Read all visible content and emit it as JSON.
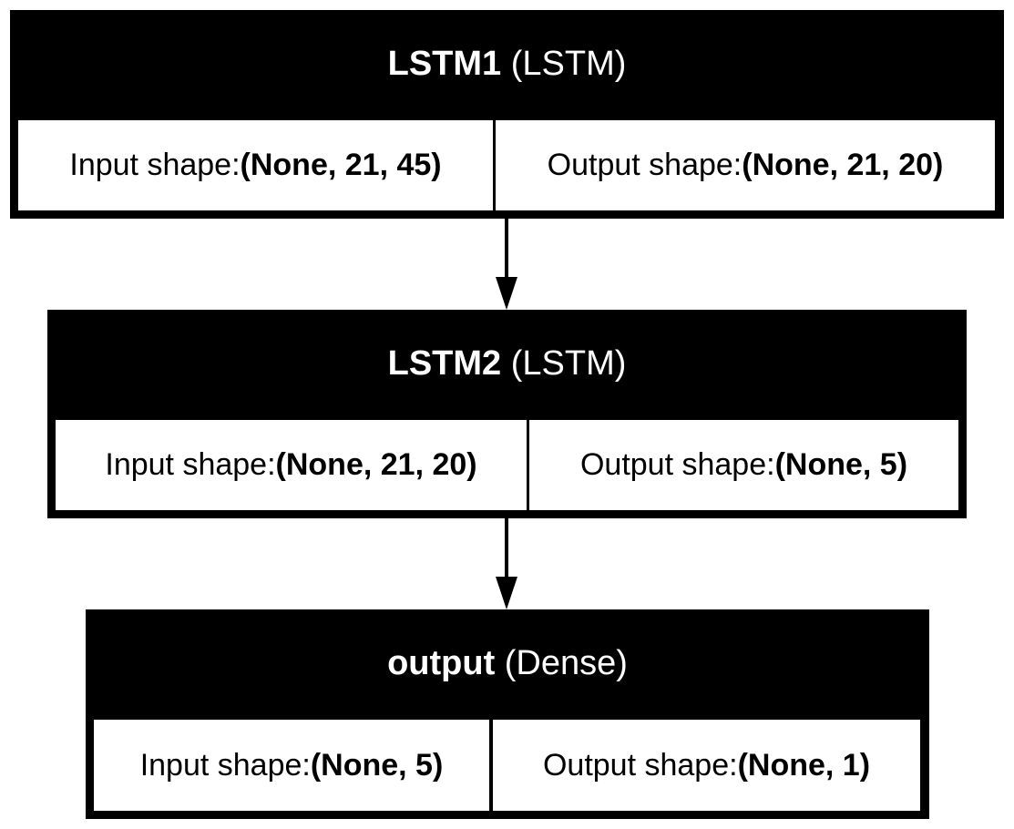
{
  "layers": [
    {
      "name": "LSTM1",
      "type": "(LSTM)",
      "input_label": "Input shape: ",
      "input_shape": "(None, 21, 45)",
      "output_label": "Output shape: ",
      "output_shape": "(None, 21, 20)"
    },
    {
      "name": "LSTM2",
      "type": "(LSTM)",
      "input_label": "Input shape: ",
      "input_shape": "(None, 21, 20)",
      "output_label": "Output shape: ",
      "output_shape": "(None, 5)"
    },
    {
      "name": "output",
      "type": "(Dense)",
      "input_label": "Input shape: ",
      "input_shape": "(None, 5)",
      "output_label": "Output shape: ",
      "output_shape": "(None, 1)"
    }
  ],
  "colors": {
    "header_bg": "#000000",
    "header_text": "#ffffff",
    "cell_bg": "#ffffff",
    "edge": "#000000"
  }
}
